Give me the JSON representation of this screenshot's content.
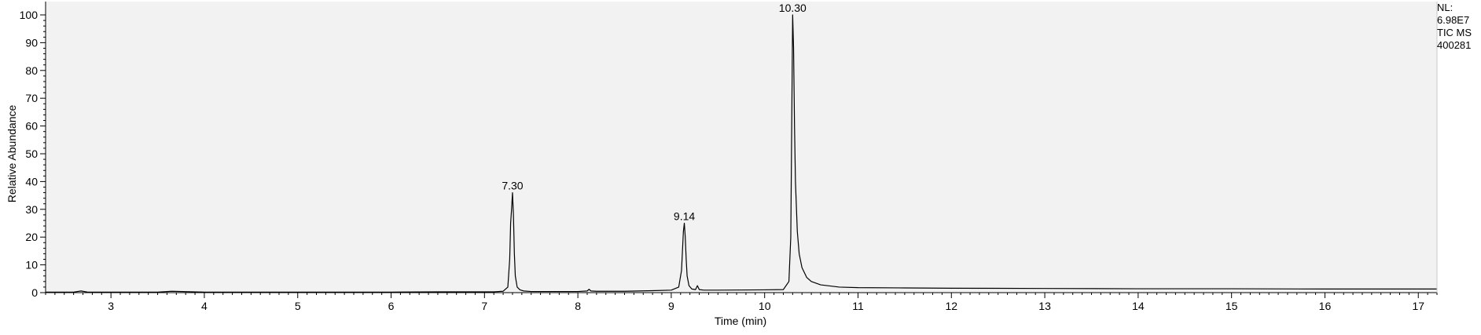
{
  "chart_data": {
    "type": "line",
    "title": "",
    "xlabel": "Time (min)",
    "ylabel": "Relative Abundance",
    "xlim": [
      2.3,
      17.2
    ],
    "ylim": [
      0,
      100
    ],
    "x_ticks": [
      3,
      4,
      5,
      6,
      7,
      8,
      9,
      10,
      11,
      12,
      13,
      14,
      15,
      16,
      17
    ],
    "y_ticks": [
      0,
      10,
      20,
      30,
      40,
      50,
      60,
      70,
      80,
      90,
      100
    ],
    "grid": false,
    "legend": "none",
    "background_color": "#f2f2f2",
    "line_color": "#000000",
    "series": [
      {
        "x": [
          2.3,
          2.6,
          2.68,
          2.75,
          3.0,
          3.5,
          3.65,
          4.0,
          4.5,
          5.0,
          5.5,
          6.0,
          6.5,
          6.9,
          7.1,
          7.2,
          7.25,
          7.27,
          7.28,
          7.29,
          7.3,
          7.31,
          7.32,
          7.33,
          7.35,
          7.38,
          7.42,
          7.5,
          7.7,
          8.0,
          8.1,
          8.12,
          8.14,
          8.2,
          8.5,
          8.8,
          9.0,
          9.08,
          9.11,
          9.12,
          9.13,
          9.14,
          9.15,
          9.16,
          9.17,
          9.19,
          9.22,
          9.26,
          9.28,
          9.3,
          9.35,
          9.5,
          10.0,
          10.2,
          10.26,
          10.28,
          10.29,
          10.3,
          10.31,
          10.32,
          10.33,
          10.35,
          10.37,
          10.4,
          10.45,
          10.5,
          10.6,
          10.8,
          11.0,
          11.5,
          12.0,
          13.0,
          14.0,
          15.0,
          16.0,
          17.0,
          17.2
        ],
        "y": [
          0.2,
          0.2,
          0.6,
          0.2,
          0.2,
          0.2,
          0.5,
          0.2,
          0.2,
          0.2,
          0.2,
          0.2,
          0.3,
          0.3,
          0.3,
          0.5,
          2.0,
          12.0,
          25.0,
          30.0,
          36.0,
          28.0,
          14.0,
          6.0,
          2.0,
          1.0,
          0.6,
          0.4,
          0.4,
          0.4,
          0.6,
          1.2,
          0.6,
          0.5,
          0.5,
          0.7,
          0.9,
          2.0,
          8.0,
          15.0,
          22.0,
          25.0,
          20.0,
          12.0,
          6.0,
          2.5,
          1.3,
          1.1,
          2.5,
          1.1,
          0.9,
          0.9,
          1.0,
          1.1,
          4.0,
          20.0,
          60.0,
          100.0,
          88.0,
          60.0,
          40.0,
          22.0,
          14.0,
          9.0,
          5.5,
          4.0,
          2.8,
          2.0,
          1.8,
          1.7,
          1.6,
          1.5,
          1.4,
          1.4,
          1.3,
          1.3,
          1.3
        ]
      }
    ],
    "annotations": [
      {
        "text": "7.30",
        "x": 7.3,
        "y": 36.0
      },
      {
        "text": "9.14",
        "x": 9.14,
        "y": 25.0
      },
      {
        "text": "10.30",
        "x": 10.3,
        "y": 100.0
      }
    ]
  },
  "info": {
    "line1": "NL:",
    "line2": "6.98E7",
    "line3": "TIC  MS",
    "line4": "400281"
  }
}
